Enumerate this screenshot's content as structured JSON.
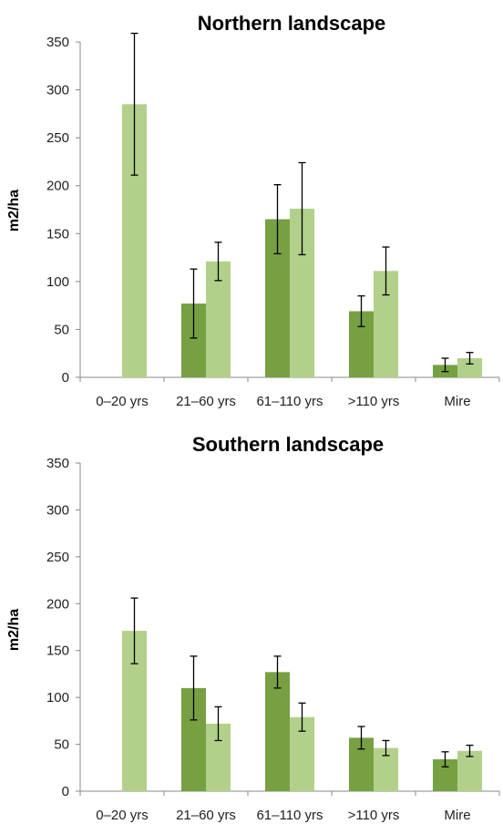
{
  "colors": {
    "dark": "#77a043",
    "light": "#b3d08b",
    "error": "#000000"
  },
  "chart_data": [
    {
      "type": "bar",
      "title": "Northern landscape",
      "ylabel": "m2/ha",
      "xlabel": "",
      "ylim": [
        0,
        350
      ],
      "yticks": [
        0,
        50,
        100,
        150,
        200,
        250,
        300,
        350
      ],
      "categories": [
        "0–20 yrs",
        "21–60 yrs",
        "61–110 yrs",
        ">110 yrs",
        "Mire"
      ],
      "series": [
        {
          "values": [
            null,
            77,
            165,
            69,
            13
          ],
          "errors": [
            null,
            36,
            36,
            16,
            7
          ]
        },
        {
          "values": [
            285,
            121,
            176,
            111,
            20
          ],
          "errors": [
            74,
            20,
            48,
            25,
            6
          ]
        }
      ]
    },
    {
      "type": "bar",
      "title": "Southern landscape",
      "ylabel": "m2/ha",
      "xlabel": "",
      "ylim": [
        0,
        350
      ],
      "yticks": [
        0,
        50,
        100,
        150,
        200,
        250,
        300,
        350
      ],
      "categories": [
        "0–20 yrs",
        "21–60 yrs",
        "61–110 yrs",
        ">110 yrs",
        "Mire"
      ],
      "series": [
        {
          "values": [
            null,
            110,
            127,
            57,
            34
          ],
          "errors": [
            null,
            34,
            17,
            12,
            8
          ]
        },
        {
          "values": [
            171,
            72,
            79,
            46,
            43
          ],
          "errors": [
            35,
            18,
            15,
            8,
            6
          ]
        }
      ]
    }
  ]
}
